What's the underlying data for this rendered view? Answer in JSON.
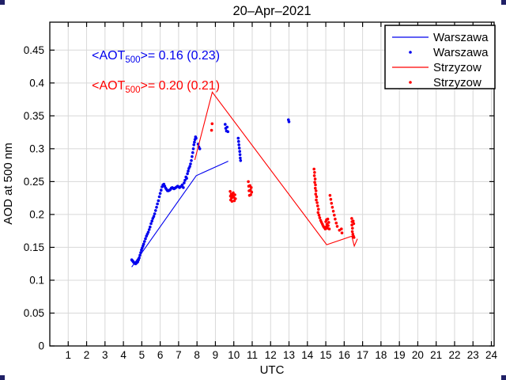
{
  "figure": {
    "background": "#ffffff",
    "corner_marker_color": "#202066"
  },
  "chart_data": {
    "type": "scatter",
    "title": "20–Apr–2021",
    "xlabel": "UTC",
    "ylabel": "AOD at 500 nm",
    "xlim": [
      0,
      24.15
    ],
    "ylim": [
      0,
      0.4925
    ],
    "xticks": [
      1,
      2,
      3,
      4,
      5,
      6,
      7,
      8,
      9,
      10,
      11,
      12,
      13,
      14,
      15,
      16,
      17,
      18,
      19,
      20,
      21,
      22,
      23,
      24
    ],
    "yticks": [
      0,
      0.05,
      0.1,
      0.15,
      0.2,
      0.25,
      0.3,
      0.35,
      0.4,
      0.45
    ],
    "grid": true,
    "grid_color": "#d8d8d8",
    "axis_color": "#000000",
    "legend": {
      "position": "top-right",
      "entries": [
        {
          "label": "Warszawa",
          "marker": "line",
          "color": "#0000ee"
        },
        {
          "label": "Warszawa",
          "marker": "dot",
          "color": "#0000ee"
        },
        {
          "label": "Strzyzow",
          "marker": "line",
          "color": "#ff0000"
        },
        {
          "label": "Strzyzow",
          "marker": "dot",
          "color": "#ff0000"
        }
      ]
    },
    "annotations": [
      {
        "name": "warszawa-mean",
        "pre": "<AOT",
        "sub": "500",
        "post": ">= 0.16 (0.23)",
        "color": "#0000ee",
        "x": 2.28,
        "y": 0.436
      },
      {
        "name": "strzyzow-mean",
        "pre": "<AOT",
        "sub": "500",
        "post": ">= 0.20 (0.21)",
        "color": "#ff0000",
        "x": 2.28,
        "y": 0.39
      }
    ],
    "series": [
      {
        "name": "warszawa-line",
        "type": "line",
        "color": "#0000ee",
        "points": [
          [
            4.45,
            0.12
          ],
          [
            7.96,
            0.259
          ],
          [
            9.7,
            0.281
          ]
        ]
      },
      {
        "name": "warszawa-points",
        "type": "scatter",
        "color": "#0000ee",
        "points": [
          [
            4.45,
            0.131
          ],
          [
            4.48,
            0.13
          ],
          [
            4.51,
            0.129
          ],
          [
            4.54,
            0.128
          ],
          [
            4.57,
            0.127
          ],
          [
            4.6,
            0.126
          ],
          [
            4.63,
            0.126
          ],
          [
            4.66,
            0.125
          ],
          [
            4.7,
            0.126
          ],
          [
            4.74,
            0.127
          ],
          [
            4.78,
            0.128
          ],
          [
            4.82,
            0.131
          ],
          [
            4.86,
            0.134
          ],
          [
            4.9,
            0.138
          ],
          [
            4.94,
            0.142
          ],
          [
            4.98,
            0.146
          ],
          [
            5.02,
            0.149
          ],
          [
            5.06,
            0.152
          ],
          [
            5.1,
            0.155
          ],
          [
            5.15,
            0.159
          ],
          [
            5.2,
            0.163
          ],
          [
            5.25,
            0.167
          ],
          [
            5.3,
            0.17
          ],
          [
            5.35,
            0.173
          ],
          [
            5.4,
            0.177
          ],
          [
            5.45,
            0.181
          ],
          [
            5.5,
            0.186
          ],
          [
            5.55,
            0.19
          ],
          [
            5.6,
            0.194
          ],
          [
            5.65,
            0.197
          ],
          [
            5.7,
            0.201
          ],
          [
            5.75,
            0.206
          ],
          [
            5.8,
            0.211
          ],
          [
            5.85,
            0.216
          ],
          [
            5.9,
            0.221
          ],
          [
            5.95,
            0.227
          ],
          [
            6.0,
            0.232
          ],
          [
            6.05,
            0.237
          ],
          [
            6.1,
            0.242
          ],
          [
            6.15,
            0.245
          ],
          [
            6.2,
            0.246
          ],
          [
            6.25,
            0.243
          ],
          [
            6.3,
            0.24
          ],
          [
            6.35,
            0.238
          ],
          [
            6.4,
            0.236
          ],
          [
            6.45,
            0.236
          ],
          [
            6.5,
            0.237
          ],
          [
            6.55,
            0.238
          ],
          [
            6.6,
            0.24
          ],
          [
            6.65,
            0.241
          ],
          [
            6.7,
            0.24
          ],
          [
            6.75,
            0.239
          ],
          [
            6.8,
            0.24
          ],
          [
            6.85,
            0.241
          ],
          [
            6.9,
            0.242
          ],
          [
            6.95,
            0.243
          ],
          [
            7.0,
            0.242
          ],
          [
            7.05,
            0.241
          ],
          [
            7.1,
            0.242
          ],
          [
            7.15,
            0.243
          ],
          [
            7.2,
            0.245
          ],
          [
            7.26,
            0.241
          ],
          [
            7.3,
            0.248
          ],
          [
            7.35,
            0.252
          ],
          [
            7.4,
            0.257
          ],
          [
            7.44,
            0.255
          ],
          [
            7.48,
            0.262
          ],
          [
            7.52,
            0.266
          ],
          [
            7.56,
            0.27
          ],
          [
            7.61,
            0.273
          ],
          [
            7.65,
            0.277
          ],
          [
            7.69,
            0.282
          ],
          [
            7.73,
            0.288
          ],
          [
            7.77,
            0.294
          ],
          [
            7.8,
            0.3
          ],
          [
            7.83,
            0.306
          ],
          [
            7.86,
            0.31
          ],
          [
            7.89,
            0.314
          ],
          [
            7.92,
            0.318
          ],
          [
            7.95,
            0.316
          ],
          [
            8.06,
            0.307
          ],
          [
            8.1,
            0.303
          ],
          [
            8.15,
            0.3
          ],
          [
            9.53,
            0.337
          ],
          [
            9.56,
            0.331
          ],
          [
            9.6,
            0.327
          ],
          [
            9.64,
            0.333
          ],
          [
            9.68,
            0.326
          ],
          [
            10.24,
            0.316
          ],
          [
            10.26,
            0.311
          ],
          [
            10.28,
            0.306
          ],
          [
            10.3,
            0.301
          ],
          [
            10.32,
            0.296
          ],
          [
            10.34,
            0.291
          ],
          [
            10.35,
            0.286
          ],
          [
            10.37,
            0.282
          ],
          [
            12.97,
            0.344
          ],
          [
            13.0,
            0.341
          ]
        ]
      },
      {
        "name": "strzyzow-line",
        "type": "line",
        "color": "#ff0000",
        "points": [
          [
            7.88,
            0.283
          ],
          [
            8.83,
            0.386
          ],
          [
            15.05,
            0.154
          ],
          [
            16.41,
            0.167
          ],
          [
            16.55,
            0.152
          ],
          [
            16.72,
            0.163
          ]
        ]
      },
      {
        "name": "strzyzow-points",
        "type": "scatter",
        "color": "#ff0000",
        "points": [
          [
            8.79,
            0.328
          ],
          [
            8.82,
            0.338
          ],
          [
            9.8,
            0.235
          ],
          [
            9.82,
            0.228
          ],
          [
            9.83,
            0.222
          ],
          [
            9.86,
            0.231
          ],
          [
            9.88,
            0.225
          ],
          [
            9.9,
            0.22
          ],
          [
            9.94,
            0.229
          ],
          [
            9.97,
            0.233
          ],
          [
            10.0,
            0.226
          ],
          [
            10.03,
            0.221
          ],
          [
            10.06,
            0.23
          ],
          [
            10.09,
            0.224
          ],
          [
            10.79,
            0.25
          ],
          [
            10.81,
            0.243
          ],
          [
            10.83,
            0.236
          ],
          [
            10.85,
            0.229
          ],
          [
            10.88,
            0.244
          ],
          [
            10.9,
            0.237
          ],
          [
            10.92,
            0.23
          ],
          [
            10.95,
            0.241
          ],
          [
            10.97,
            0.234
          ],
          [
            14.36,
            0.269
          ],
          [
            14.39,
            0.264
          ],
          [
            14.38,
            0.259
          ],
          [
            14.42,
            0.254
          ],
          [
            14.4,
            0.249
          ],
          [
            14.44,
            0.245
          ],
          [
            14.43,
            0.24
          ],
          [
            14.47,
            0.236
          ],
          [
            14.45,
            0.231
          ],
          [
            14.5,
            0.227
          ],
          [
            14.48,
            0.222
          ],
          [
            14.53,
            0.218
          ],
          [
            14.56,
            0.213
          ],
          [
            14.6,
            0.208
          ],
          [
            14.58,
            0.203
          ],
          [
            14.63,
            0.199
          ],
          [
            14.67,
            0.195
          ],
          [
            14.72,
            0.191
          ],
          [
            14.77,
            0.188
          ],
          [
            14.82,
            0.185
          ],
          [
            14.87,
            0.182
          ],
          [
            14.92,
            0.18
          ],
          [
            14.97,
            0.178
          ],
          [
            15.02,
            0.181
          ],
          [
            15.06,
            0.185
          ],
          [
            15.0,
            0.189
          ],
          [
            15.04,
            0.192
          ],
          [
            15.09,
            0.179
          ],
          [
            15.13,
            0.183
          ],
          [
            15.16,
            0.188
          ],
          [
            15.11,
            0.193
          ],
          [
            15.19,
            0.178
          ],
          [
            15.23,
            0.229
          ],
          [
            15.27,
            0.223
          ],
          [
            15.31,
            0.217
          ],
          [
            15.36,
            0.211
          ],
          [
            15.41,
            0.205
          ],
          [
            15.46,
            0.199
          ],
          [
            15.51,
            0.193
          ],
          [
            15.57,
            0.187
          ],
          [
            15.62,
            0.182
          ],
          [
            15.74,
            0.176
          ],
          [
            15.85,
            0.178
          ],
          [
            15.88,
            0.172
          ],
          [
            16.41,
            0.194
          ],
          [
            16.43,
            0.189
          ],
          [
            16.42,
            0.184
          ],
          [
            16.45,
            0.179
          ],
          [
            16.44,
            0.174
          ],
          [
            16.47,
            0.17
          ],
          [
            16.5,
            0.167
          ],
          [
            16.53,
            0.165
          ],
          [
            16.49,
            0.19
          ],
          [
            16.52,
            0.186
          ]
        ]
      }
    ]
  }
}
